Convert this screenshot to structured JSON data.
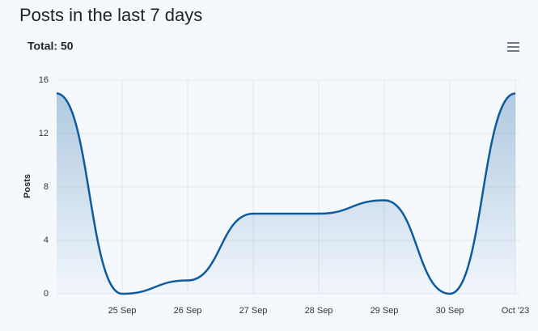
{
  "header": {
    "title": "Posts in the last 7 days"
  },
  "chart_data": {
    "type": "area",
    "subtitle": "Total: 50",
    "y_label": "Posts",
    "categories": [
      null,
      "25 Sep",
      "26 Sep",
      "27 Sep",
      "28 Sep",
      "29 Sep",
      "30 Sep",
      "Oct '23"
    ],
    "series": [
      {
        "name": "Posts",
        "color": "#0e5a9e",
        "values": [
          15,
          0,
          1,
          6,
          6,
          7,
          0,
          15
        ]
      }
    ],
    "ylim": [
      0,
      16
    ],
    "yticks": [
      0,
      4,
      8,
      12,
      16
    ],
    "grid": true
  }
}
